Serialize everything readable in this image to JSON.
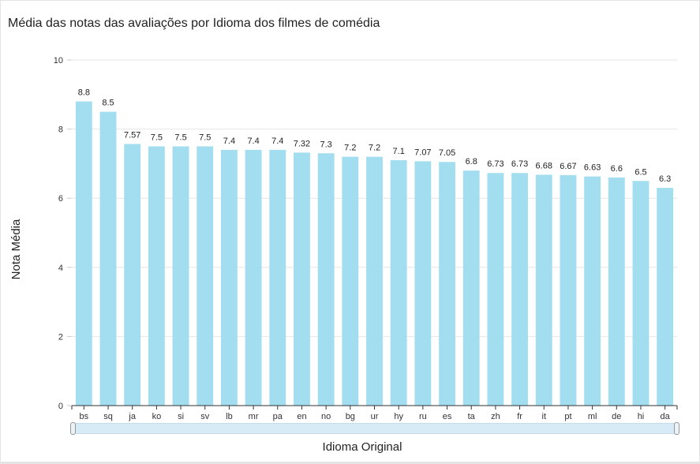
{
  "chart_data": {
    "type": "bar",
    "title": "Média das notas das avaliações por Idioma dos filmes de comédia",
    "xlabel": "Idioma Original",
    "ylabel": "Nota Média",
    "ylim": [
      0,
      10
    ],
    "yticks": [
      0,
      2,
      4,
      6,
      8,
      10
    ],
    "grid": true,
    "bar_color": "#a3def0",
    "categories": [
      "bs",
      "sq",
      "ja",
      "ko",
      "si",
      "sv",
      "lb",
      "mr",
      "pa",
      "en",
      "no",
      "bg",
      "ur",
      "hy",
      "ru",
      "es",
      "ta",
      "zh",
      "fr",
      "it",
      "pt",
      "ml",
      "de",
      "hi",
      "da"
    ],
    "values": [
      8.8,
      8.5,
      7.57,
      7.5,
      7.5,
      7.5,
      7.4,
      7.4,
      7.4,
      7.32,
      7.3,
      7.2,
      7.2,
      7.1,
      7.07,
      7.05,
      6.8,
      6.73,
      6.73,
      6.68,
      6.67,
      6.63,
      6.6,
      6.5,
      6.3
    ]
  },
  "scrollbar": {
    "track_color": "#d7ebf6"
  }
}
